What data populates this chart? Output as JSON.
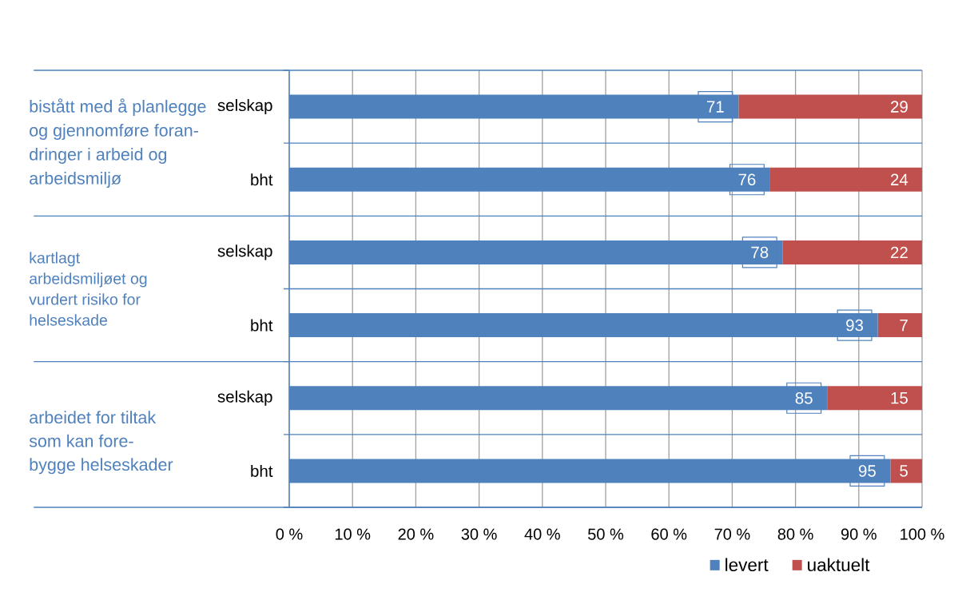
{
  "chart_data": {
    "type": "bar",
    "orientation": "horizontal",
    "stacked": true,
    "categories": [
      "selskap",
      "bht",
      "selskap",
      "bht",
      "selskap",
      "bht"
    ],
    "series": [
      {
        "name": "levert",
        "color": "#4f81bd",
        "values": [
          71,
          76,
          78,
          93,
          85,
          95
        ]
      },
      {
        "name": "uaktuelt",
        "color": "#c0504d",
        "values": [
          29,
          24,
          22,
          7,
          15,
          5
        ]
      }
    ],
    "xlim": [
      0,
      100
    ],
    "xticks": [
      {
        "value": 0,
        "label": "0 %"
      },
      {
        "value": 10,
        "label": "10 %"
      },
      {
        "value": 20,
        "label": "20 %"
      },
      {
        "value": 30,
        "label": "30 %"
      },
      {
        "value": 40,
        "label": "40 %"
      },
      {
        "value": 50,
        "label": "50 %"
      },
      {
        "value": 60,
        "label": "60 %"
      },
      {
        "value": 70,
        "label": "70 %"
      },
      {
        "value": 80,
        "label": "80 %"
      },
      {
        "value": 90,
        "label": "90 %"
      },
      {
        "value": 100,
        "label": "100 %"
      }
    ],
    "grid": true,
    "legend": "bottom right",
    "data_labels": true,
    "annotations": [
      "bistått med å planlegge og gjennomføre foran-dringer i arbeid og arbeidsmiljø",
      "kartlagt arbeidsmiljøet og vurdert risiko for helseskade",
      "arbeidet for tiltak som kan fore-bygge helseskader"
    ]
  }
}
